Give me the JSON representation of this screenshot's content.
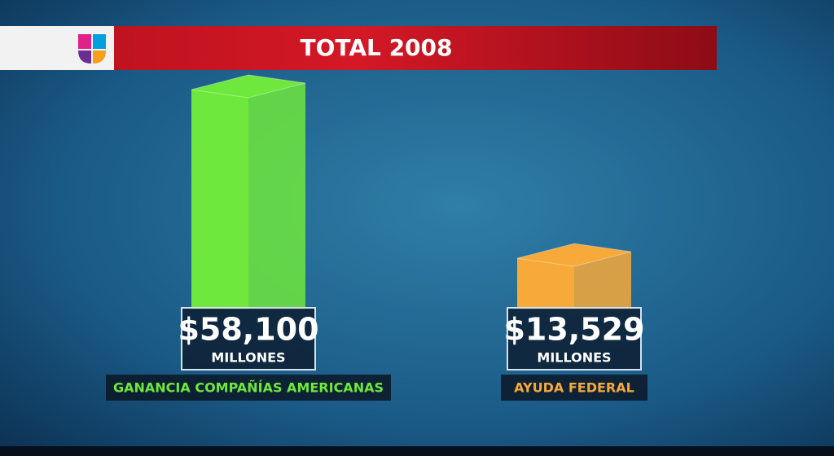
{
  "chart_data": {
    "type": "bar",
    "title": "TOTAL 2008",
    "categories": [
      "GANANCIA COMPAÑÍAS AMERICANAS",
      "AYUDA FEDERAL"
    ],
    "values": [
      58100,
      13529
    ],
    "value_labels": [
      "$58,100",
      "$13,529"
    ],
    "unit": "MILLONES",
    "colors": [
      "#6ee83c",
      "#f7a93a"
    ]
  }
}
